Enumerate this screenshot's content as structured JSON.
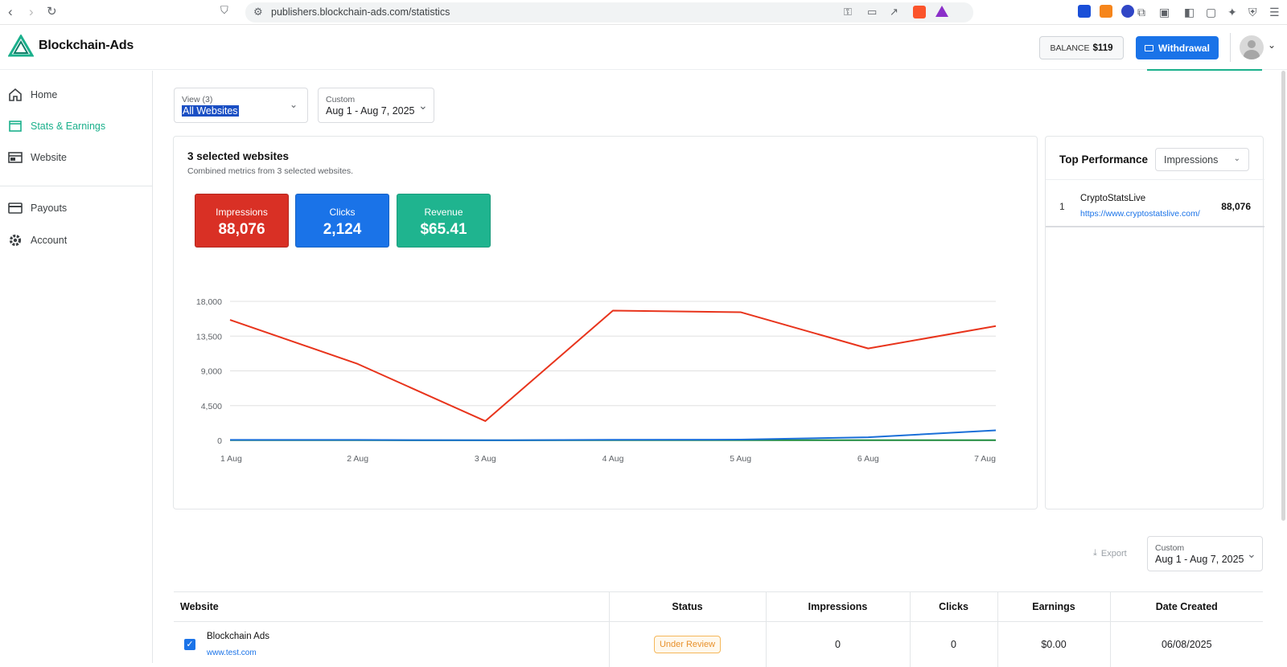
{
  "browser": {
    "url": "publishers.blockchain-ads.com/statistics"
  },
  "app": {
    "brand": "Blockchain-Ads",
    "balance_label": "BALANCE",
    "balance_value": "$119",
    "withdraw_label": "Withdrawal"
  },
  "sidebar": {
    "items": [
      {
        "label": "Home",
        "icon": "home-icon"
      },
      {
        "label": "Stats & Earnings",
        "icon": "stats-icon",
        "active": true
      },
      {
        "label": "Website",
        "icon": "website-icon"
      },
      {
        "label": "Payouts",
        "icon": "card-icon"
      },
      {
        "label": "Account",
        "icon": "gear-icon"
      }
    ]
  },
  "filters": {
    "view_label": "View (3)",
    "view_value": "All Websites",
    "date_label": "Custom",
    "date_value": "Aug 1 - Aug 7, 2025"
  },
  "overview": {
    "title": "3 selected websites",
    "subtitle": "Combined metrics from 3 selected websites.",
    "metrics": [
      {
        "label": "Impressions",
        "value": "88,076",
        "color": "#d93025"
      },
      {
        "label": "Clicks",
        "value": "2,124",
        "color": "#1a73e8"
      },
      {
        "label": "Revenue",
        "value": "$65.41",
        "color": "#1fb48f"
      }
    ]
  },
  "chart_data": {
    "type": "line",
    "categories": [
      "1 Aug",
      "2 Aug",
      "3 Aug",
      "4 Aug",
      "5 Aug",
      "6 Aug",
      "7 Aug"
    ],
    "yticks": [
      "0",
      "4,500",
      "9,000",
      "13,500",
      "18,000"
    ],
    "ylim": [
      0,
      18000
    ],
    "grid": true,
    "series": [
      {
        "name": "Impressions",
        "color": "#e8341c",
        "values": [
          15600,
          9900,
          2500,
          16800,
          16600,
          11900,
          14800
        ]
      },
      {
        "name": "Clicks",
        "color": "#1a6fd8",
        "values": [
          60,
          60,
          20,
          80,
          100,
          400,
          1300
        ]
      },
      {
        "name": "Revenue",
        "color": "#1c8a3c",
        "values": [
          20,
          20,
          10,
          20,
          20,
          20,
          30
        ]
      }
    ]
  },
  "top_performance": {
    "title": "Top Performance",
    "metric_select": "Impressions",
    "rows": [
      {
        "rank": "1",
        "name": "CryptoStatsLive",
        "url": "https://www.cryptostatslive.com/",
        "value": "88,076"
      }
    ]
  },
  "table_controls": {
    "export_label": "Export",
    "date_label": "Custom",
    "date_value": "Aug 1 - Aug 7, 2025"
  },
  "table": {
    "headers": [
      "Website",
      "Status",
      "Impressions",
      "Clicks",
      "Earnings",
      "Date Created"
    ],
    "rows": [
      {
        "name": "Blockchain Ads",
        "url": "www.test.com",
        "status": "Under Review",
        "impressions": "0",
        "clicks": "0",
        "earnings": "$0.00",
        "date": "06/08/2025"
      }
    ]
  }
}
